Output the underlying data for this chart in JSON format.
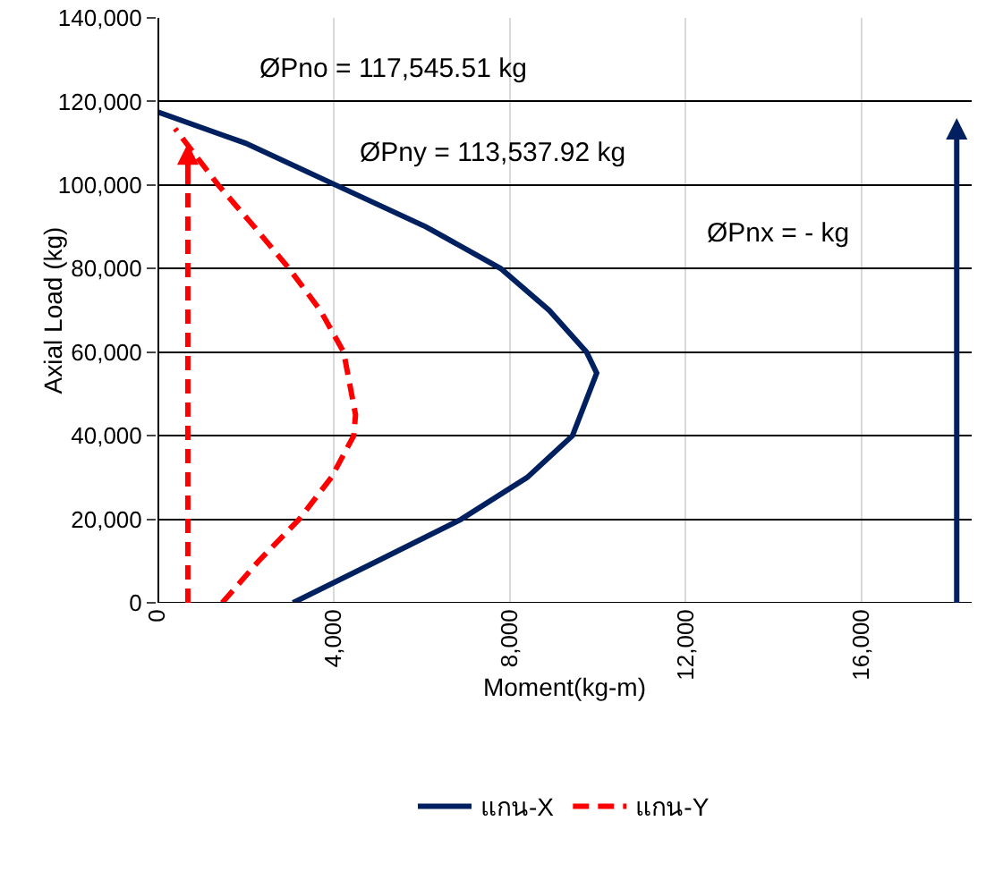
{
  "chart_data": {
    "type": "line",
    "xlabel": "Moment(kg-m)",
    "ylabel": "Axial Load (kg)",
    "xlim": [
      0,
      18500
    ],
    "xticks": [
      0,
      {
        "value": 4000,
        "label": "4,000"
      },
      {
        "value": 8000,
        "label": "8,000"
      },
      {
        "value": 12000,
        "label": "12,000"
      },
      {
        "value": 16000,
        "label": "16,000"
      }
    ],
    "ylim": [
      0,
      140000
    ],
    "yticks": [
      0,
      {
        "value": 20000,
        "label": "20,000"
      },
      {
        "value": 40000,
        "label": "40,000"
      },
      {
        "value": 60000,
        "label": "60,000"
      },
      {
        "value": 80000,
        "label": "80,000"
      },
      {
        "value": 100000,
        "label": "100,000"
      },
      {
        "value": 120000,
        "label": "120,000"
      },
      {
        "value": 140000,
        "label": "140,000"
      }
    ],
    "grid": true,
    "legend": "bottom",
    "series": [
      {
        "name": "แกน-X",
        "color": "#002060",
        "line_style": "solid",
        "x": [
          3080,
          5000,
          6900,
          8400,
          9430,
          9980,
          9750,
          8900,
          7800,
          6100,
          4050,
          2000,
          0
        ],
        "values": [
          0,
          10000,
          20000,
          30000,
          40000,
          55000,
          60000,
          70000,
          80000,
          90000,
          100000,
          110000,
          117500
        ]
      },
      {
        "name": "แกน-Y",
        "color": "#ff0000",
        "line_style": "dashed",
        "x": [
          1470,
          2300,
          3220,
          3950,
          4460,
          4500,
          4230,
          3700,
          2990,
          2200,
          1380,
          800,
          400
        ],
        "values": [
          0,
          10000,
          20000,
          30000,
          40000,
          45000,
          60000,
          70000,
          80000,
          90000,
          100000,
          108000,
          113500
        ]
      }
    ],
    "annotations": [
      "ØPno = 117,545.51 kg",
      "ØPny = 113,537.92 kg",
      "ØPnx = - kg"
    ]
  }
}
